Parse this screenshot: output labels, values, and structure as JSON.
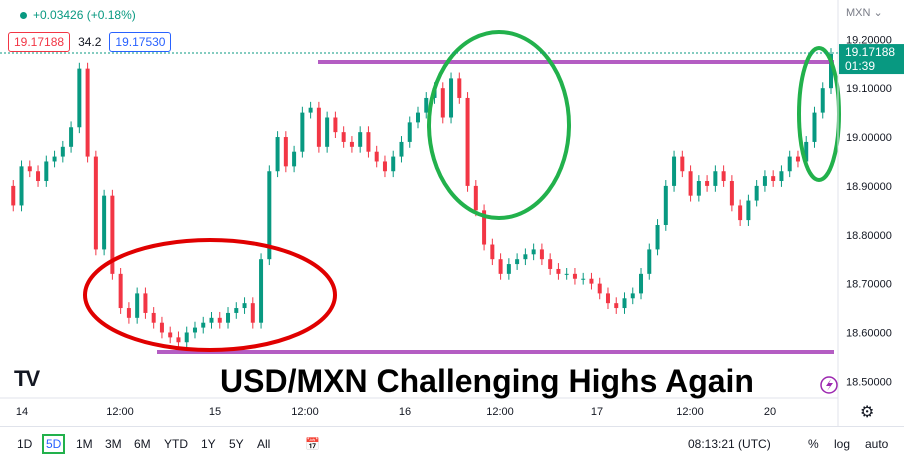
{
  "header": {
    "change": "+0.03426 (+0.18%)",
    "bid": "19.17188",
    "spread": "34.2",
    "ask": "19.17530",
    "currency_menu": "MXN"
  },
  "annotation_title": "USD/MXN Challenging Highs Again",
  "logo": "TV",
  "price_label": {
    "value": "19.17188",
    "countdown": "01:39"
  },
  "timeframes": [
    "1D",
    "5D",
    "1M",
    "3M",
    "6M",
    "YTD",
    "1Y",
    "5Y",
    "All"
  ],
  "selected_timeframe": "5D",
  "clock": "08:13:21 (UTC)",
  "scale_options": [
    "%",
    "log",
    "auto"
  ],
  "colors": {
    "up": "#089981",
    "down": "#f23645",
    "accent": "#2962ff",
    "resistance": "#9c27b0",
    "circle_green": "#22b14c",
    "circle_red": "#e00000"
  },
  "chart_data": {
    "type": "line",
    "y_ticks": [
      "19.20000",
      "19.10000",
      "19.00000",
      "18.90000",
      "18.80000",
      "18.70000",
      "18.60000",
      "18.50000"
    ],
    "x_ticks": [
      "14",
      "12:00",
      "15",
      "12:00",
      "16",
      "12:00",
      "17",
      "12:00",
      "20"
    ],
    "ylim": [
      18.47,
      19.26
    ],
    "x": [
      0,
      1,
      2,
      3,
      4,
      5,
      6,
      7,
      8,
      9,
      10,
      11,
      12,
      13,
      14,
      15,
      16,
      17,
      18,
      19,
      20,
      21,
      22,
      23,
      24,
      25,
      26,
      27,
      28,
      29,
      30,
      31,
      32,
      33,
      34,
      35,
      36,
      37,
      38,
      39,
      40,
      41,
      42,
      43,
      44,
      45,
      46,
      47,
      48,
      49,
      50,
      51,
      52,
      53,
      54,
      55,
      56,
      57,
      58,
      59,
      60,
      61,
      62,
      63,
      64,
      65,
      66,
      67,
      68,
      69,
      70,
      71,
      72,
      73,
      74,
      75,
      76,
      77,
      78,
      79,
      80,
      81,
      82,
      83,
      84,
      85,
      86,
      87,
      88,
      89,
      90,
      91,
      92,
      93,
      94,
      95,
      96,
      97,
      98,
      99,
      100
    ],
    "series": [
      {
        "values": [
          18.9,
          18.86,
          18.94,
          18.93,
          18.91,
          18.95,
          18.96,
          18.98,
          19.02,
          19.14,
          18.96,
          18.77,
          18.88,
          18.72,
          18.65,
          18.63,
          18.68,
          18.64,
          18.62,
          18.6,
          18.59,
          18.58,
          18.6,
          18.61,
          18.62,
          18.63,
          18.62,
          18.64,
          18.65,
          18.66,
          18.62,
          18.75,
          18.93,
          19.0,
          18.94,
          18.97,
          19.05,
          19.06,
          18.98,
          19.04,
          19.01,
          18.99,
          18.98,
          19.01,
          18.97,
          18.95,
          18.93,
          18.96,
          18.99,
          19.03,
          19.05,
          19.08,
          19.1,
          19.04,
          19.12,
          19.08,
          18.9,
          18.85,
          18.78,
          18.75,
          18.72,
          18.74,
          18.75,
          18.76,
          18.77,
          18.75,
          18.73,
          18.72,
          18.72,
          18.71,
          18.71,
          18.7,
          18.68,
          18.66,
          18.65,
          18.67,
          18.68,
          18.72,
          18.77,
          18.82,
          18.9,
          18.96,
          18.93,
          18.88,
          18.91,
          18.9,
          18.93,
          18.91,
          18.86,
          18.83,
          18.87,
          18.9,
          18.92,
          18.91,
          18.93,
          18.96,
          18.95,
          18.99,
          19.05,
          19.1,
          19.17
        ]
      }
    ]
  }
}
